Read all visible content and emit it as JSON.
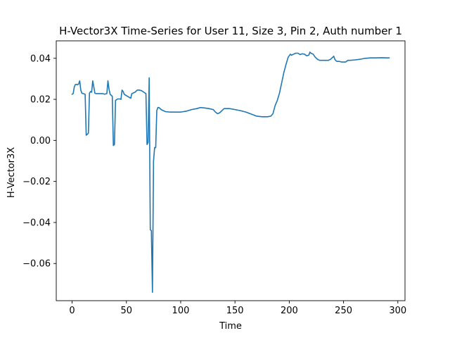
{
  "chart_data": {
    "type": "line",
    "title": "H-Vector3X Time-Series for User 11, Size 3, Pin 2, Auth number 1",
    "xlabel": "Time",
    "ylabel": "H-Vector3X",
    "xlim": [
      -14.6,
      306.6
    ],
    "ylim": [
      -0.0781,
      0.0485
    ],
    "xticks": [
      0,
      50,
      100,
      150,
      200,
      250,
      300
    ],
    "xtick_labels": [
      "0",
      "50",
      "100",
      "150",
      "200",
      "250",
      "300"
    ],
    "yticks": [
      -0.06,
      -0.04,
      -0.02,
      0.0,
      0.02,
      0.04
    ],
    "ytick_labels": [
      "−0.06",
      "−0.04",
      "−0.02",
      "0.00",
      "0.02",
      "0.04"
    ],
    "grid": false,
    "color": "#1f77b4",
    "series": [
      {
        "x": [
          0,
          1,
          2,
          3,
          4,
          5,
          6,
          7,
          8,
          9,
          10,
          12,
          13,
          14,
          15,
          16,
          17,
          18,
          19,
          20,
          21,
          22,
          23,
          24,
          26,
          28,
          30,
          32,
          33,
          34,
          35,
          36,
          37,
          38,
          39,
          40,
          42,
          44,
          45,
          46,
          47,
          48,
          50,
          52,
          54,
          55,
          56,
          58,
          60,
          62,
          64,
          66,
          68,
          69,
          70,
          71,
          72,
          73,
          74,
          75,
          76,
          77,
          78,
          79,
          80,
          82,
          84,
          86,
          90,
          95,
          100,
          105,
          110,
          115,
          118,
          122,
          126,
          130,
          132,
          134,
          136,
          138,
          140,
          142,
          145,
          150,
          155,
          160,
          165,
          170,
          175,
          180,
          183,
          185,
          187,
          189,
          191,
          193,
          195,
          197,
          199,
          201,
          202,
          204,
          206,
          208,
          210,
          212,
          214,
          216,
          218,
          219,
          220,
          222,
          224,
          226,
          228,
          230,
          232,
          234,
          236,
          238,
          240,
          241,
          242,
          243,
          244,
          246,
          248,
          250,
          252,
          254,
          256,
          260,
          265,
          270,
          275,
          280,
          285,
          290,
          292
        ],
        "y": [
          0.0225,
          0.0228,
          0.026,
          0.0272,
          0.0273,
          0.0271,
          0.0275,
          0.029,
          0.0245,
          0.023,
          0.0228,
          0.0225,
          0.0025,
          0.003,
          0.0035,
          0.023,
          0.0238,
          0.0235,
          0.029,
          0.026,
          0.023,
          0.0228,
          0.0228,
          0.0228,
          0.0228,
          0.0228,
          0.0225,
          0.0228,
          0.029,
          0.025,
          0.0225,
          0.022,
          0.0215,
          -0.0025,
          -0.002,
          0.0195,
          0.0202,
          0.0202,
          0.02,
          0.0245,
          0.0238,
          0.0225,
          0.0218,
          0.0212,
          0.0205,
          0.0228,
          0.023,
          0.0235,
          0.0245,
          0.0245,
          0.0242,
          0.0235,
          0.0228,
          -0.002,
          -0.001,
          0.0305,
          -0.0435,
          -0.044,
          -0.074,
          -0.01,
          -0.0035,
          -0.0035,
          0.0145,
          0.016,
          0.016,
          0.015,
          0.0145,
          0.014,
          0.0138,
          0.0138,
          0.0138,
          0.0142,
          0.015,
          0.0155,
          0.016,
          0.0158,
          0.0155,
          0.015,
          0.0138,
          0.013,
          0.0135,
          0.0145,
          0.0155,
          0.0155,
          0.0155,
          0.015,
          0.0145,
          0.0138,
          0.0128,
          0.0118,
          0.0115,
          0.0115,
          0.0118,
          0.013,
          0.017,
          0.0195,
          0.023,
          0.028,
          0.033,
          0.037,
          0.0405,
          0.042,
          0.0415,
          0.042,
          0.0425,
          0.0425,
          0.0418,
          0.0422,
          0.042,
          0.0412,
          0.0415,
          0.043,
          0.0425,
          0.042,
          0.0405,
          0.0395,
          0.039,
          0.039,
          0.039,
          0.039,
          0.039,
          0.0395,
          0.0405,
          0.041,
          0.0395,
          0.0388,
          0.0385,
          0.0385,
          0.0382,
          0.0382,
          0.0382,
          0.039,
          0.039,
          0.0392,
          0.0395,
          0.04,
          0.0402,
          0.0402,
          0.0403,
          0.0402,
          0.0402
        ]
      }
    ]
  }
}
